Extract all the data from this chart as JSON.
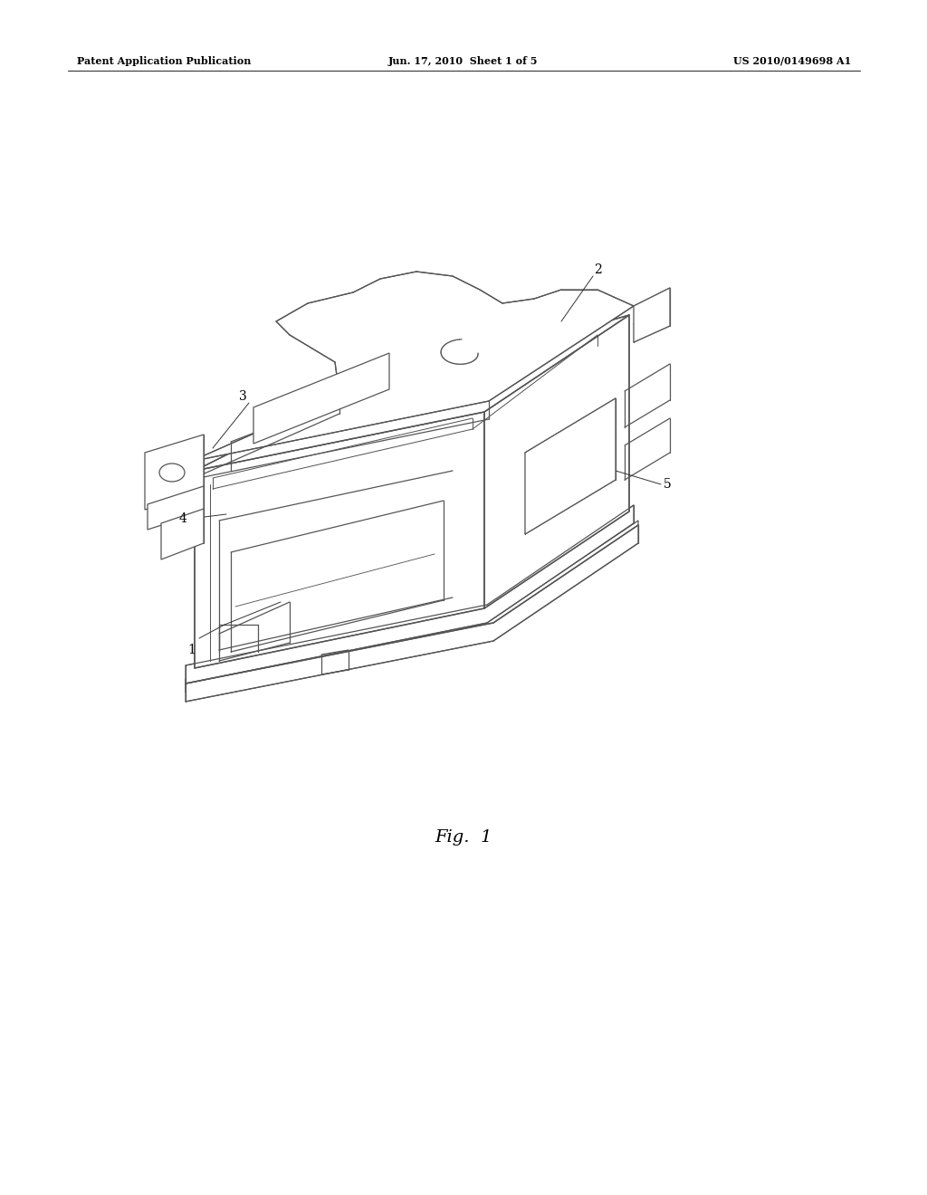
{
  "background_color": "#ffffff",
  "header_left": "Patent Application Publication",
  "header_center": "Jun. 17, 2010  Sheet 1 of 5",
  "header_right": "US 2010/0149698 A1",
  "figure_label": "Fig.  1",
  "line_color": "#555555",
  "line_width": 0.9
}
